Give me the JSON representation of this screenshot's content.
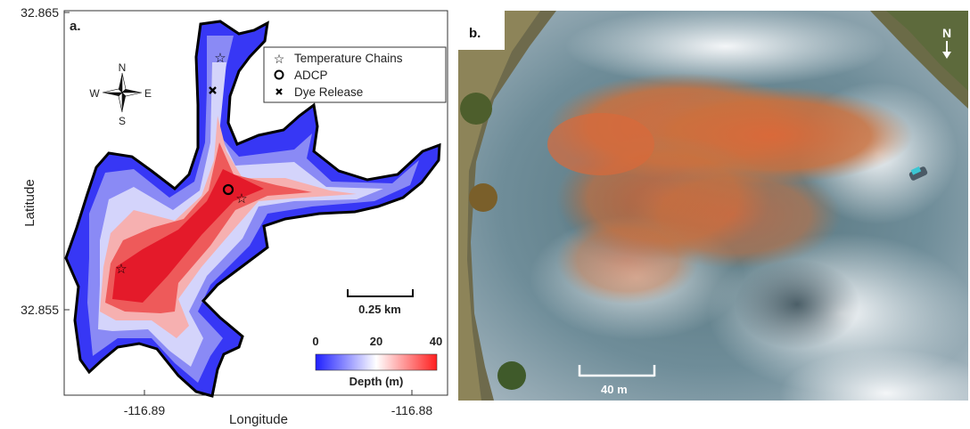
{
  "panel_a": {
    "label": "a.",
    "y_axis_label": "Latitude",
    "x_axis_label": "Longitude",
    "y_ticks": [
      "32.865",
      "32.855"
    ],
    "x_ticks": [
      "-116.89",
      "-116.88"
    ],
    "compass": {
      "n": "N",
      "s": "S",
      "e": "E",
      "w": "W"
    },
    "legend": {
      "items": [
        {
          "symbol": "star",
          "label": "Temperature Chains"
        },
        {
          "symbol": "circle",
          "label": "ADCP"
        },
        {
          "symbol": "cross",
          "label": "Dye Release"
        }
      ]
    },
    "scale_bar_label": "0.25 km",
    "colorbar": {
      "ticks": [
        "0",
        "20",
        "40"
      ],
      "label": "Depth (m)",
      "low_color": "#1f1fff",
      "mid_color": "#ffffff",
      "high_color": "#ff1f1f"
    }
  },
  "panel_b": {
    "label": "b.",
    "north_label": "N",
    "scale_bar_label": "40 m",
    "dye_color": "#d9693a",
    "water_color": "#4a6f7a"
  }
}
